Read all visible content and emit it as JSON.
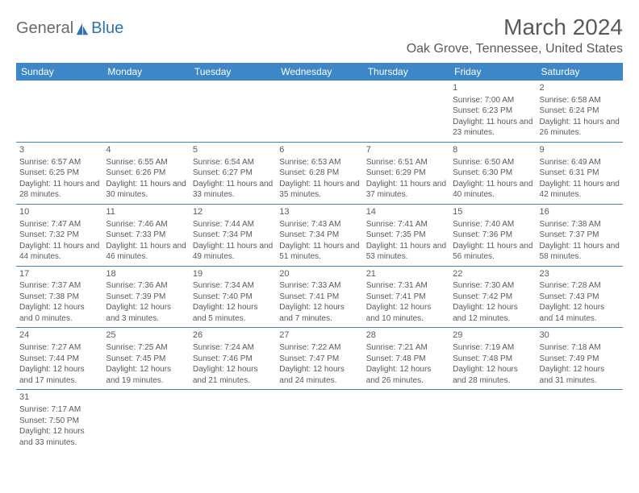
{
  "logo": {
    "text1": "General",
    "text2": "Blue"
  },
  "title": "March 2024",
  "location": "Oak Grove, Tennessee, United States",
  "colors": {
    "header_bg": "#3d87c9",
    "header_text": "#ffffff",
    "border": "#3d87c9",
    "text": "#5a5a5a",
    "logo_gray": "#6a6a6a",
    "logo_blue": "#2d72b8"
  },
  "weekdays": [
    "Sunday",
    "Monday",
    "Tuesday",
    "Wednesday",
    "Thursday",
    "Friday",
    "Saturday"
  ],
  "weeks": [
    [
      null,
      null,
      null,
      null,
      null,
      {
        "d": "1",
        "sr": "7:00 AM",
        "ss": "6:23 PM",
        "dl": "11 hours and 23 minutes."
      },
      {
        "d": "2",
        "sr": "6:58 AM",
        "ss": "6:24 PM",
        "dl": "11 hours and 26 minutes."
      }
    ],
    [
      {
        "d": "3",
        "sr": "6:57 AM",
        "ss": "6:25 PM",
        "dl": "11 hours and 28 minutes."
      },
      {
        "d": "4",
        "sr": "6:55 AM",
        "ss": "6:26 PM",
        "dl": "11 hours and 30 minutes."
      },
      {
        "d": "5",
        "sr": "6:54 AM",
        "ss": "6:27 PM",
        "dl": "11 hours and 33 minutes."
      },
      {
        "d": "6",
        "sr": "6:53 AM",
        "ss": "6:28 PM",
        "dl": "11 hours and 35 minutes."
      },
      {
        "d": "7",
        "sr": "6:51 AM",
        "ss": "6:29 PM",
        "dl": "11 hours and 37 minutes."
      },
      {
        "d": "8",
        "sr": "6:50 AM",
        "ss": "6:30 PM",
        "dl": "11 hours and 40 minutes."
      },
      {
        "d": "9",
        "sr": "6:49 AM",
        "ss": "6:31 PM",
        "dl": "11 hours and 42 minutes."
      }
    ],
    [
      {
        "d": "10",
        "sr": "7:47 AM",
        "ss": "7:32 PM",
        "dl": "11 hours and 44 minutes."
      },
      {
        "d": "11",
        "sr": "7:46 AM",
        "ss": "7:33 PM",
        "dl": "11 hours and 46 minutes."
      },
      {
        "d": "12",
        "sr": "7:44 AM",
        "ss": "7:34 PM",
        "dl": "11 hours and 49 minutes."
      },
      {
        "d": "13",
        "sr": "7:43 AM",
        "ss": "7:34 PM",
        "dl": "11 hours and 51 minutes."
      },
      {
        "d": "14",
        "sr": "7:41 AM",
        "ss": "7:35 PM",
        "dl": "11 hours and 53 minutes."
      },
      {
        "d": "15",
        "sr": "7:40 AM",
        "ss": "7:36 PM",
        "dl": "11 hours and 56 minutes."
      },
      {
        "d": "16",
        "sr": "7:38 AM",
        "ss": "7:37 PM",
        "dl": "11 hours and 58 minutes."
      }
    ],
    [
      {
        "d": "17",
        "sr": "7:37 AM",
        "ss": "7:38 PM",
        "dl": "12 hours and 0 minutes."
      },
      {
        "d": "18",
        "sr": "7:36 AM",
        "ss": "7:39 PM",
        "dl": "12 hours and 3 minutes."
      },
      {
        "d": "19",
        "sr": "7:34 AM",
        "ss": "7:40 PM",
        "dl": "12 hours and 5 minutes."
      },
      {
        "d": "20",
        "sr": "7:33 AM",
        "ss": "7:41 PM",
        "dl": "12 hours and 7 minutes."
      },
      {
        "d": "21",
        "sr": "7:31 AM",
        "ss": "7:41 PM",
        "dl": "12 hours and 10 minutes."
      },
      {
        "d": "22",
        "sr": "7:30 AM",
        "ss": "7:42 PM",
        "dl": "12 hours and 12 minutes."
      },
      {
        "d": "23",
        "sr": "7:28 AM",
        "ss": "7:43 PM",
        "dl": "12 hours and 14 minutes."
      }
    ],
    [
      {
        "d": "24",
        "sr": "7:27 AM",
        "ss": "7:44 PM",
        "dl": "12 hours and 17 minutes."
      },
      {
        "d": "25",
        "sr": "7:25 AM",
        "ss": "7:45 PM",
        "dl": "12 hours and 19 minutes."
      },
      {
        "d": "26",
        "sr": "7:24 AM",
        "ss": "7:46 PM",
        "dl": "12 hours and 21 minutes."
      },
      {
        "d": "27",
        "sr": "7:22 AM",
        "ss": "7:47 PM",
        "dl": "12 hours and 24 minutes."
      },
      {
        "d": "28",
        "sr": "7:21 AM",
        "ss": "7:48 PM",
        "dl": "12 hours and 26 minutes."
      },
      {
        "d": "29",
        "sr": "7:19 AM",
        "ss": "7:48 PM",
        "dl": "12 hours and 28 minutes."
      },
      {
        "d": "30",
        "sr": "7:18 AM",
        "ss": "7:49 PM",
        "dl": "12 hours and 31 minutes."
      }
    ],
    [
      {
        "d": "31",
        "sr": "7:17 AM",
        "ss": "7:50 PM",
        "dl": "12 hours and 33 minutes."
      },
      null,
      null,
      null,
      null,
      null,
      null
    ]
  ]
}
